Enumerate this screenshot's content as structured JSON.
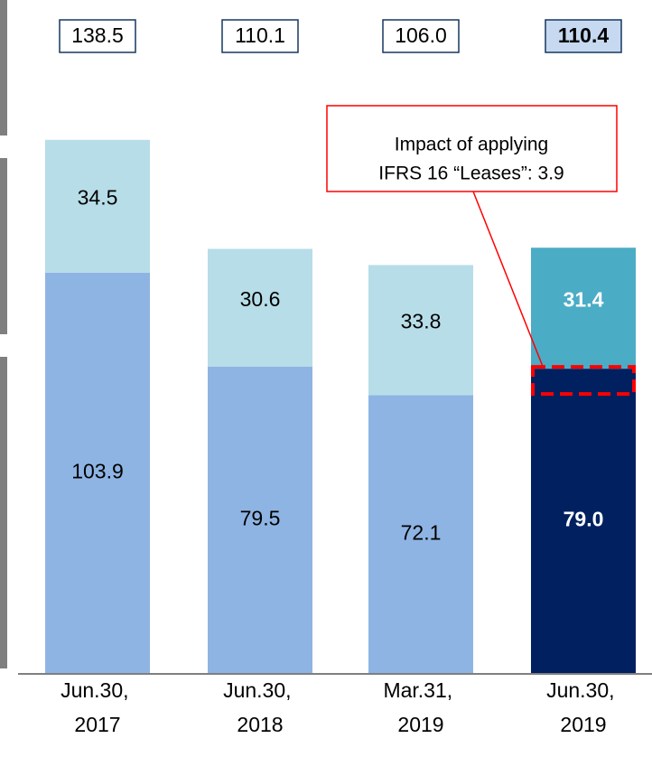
{
  "chart_data": {
    "type": "stacked_bar",
    "categories": [
      "Jun.30, 2017",
      "Jun.30, 2018",
      "Mar.31, 2019",
      "Jun.30, 2019"
    ],
    "series": [
      {
        "values": [
          103.9,
          79.5,
          72.1,
          79.0
        ],
        "value_labels": [
          "103.9",
          "79.5",
          "72.1",
          "79.0"
        ],
        "colors": [
          "#8eb4e3",
          "#8eb4e3",
          "#8eb4e3",
          "#002060"
        ]
      },
      {
        "values": [
          34.5,
          30.6,
          33.8,
          31.4
        ],
        "value_labels": [
          "34.5",
          "30.6",
          "33.8",
          "31.4"
        ],
        "colors": [
          "#b7dde8",
          "#b7dde8",
          "#b7dde8",
          "#4bacc6"
        ]
      }
    ],
    "totals": [
      138.5,
      110.1,
      106.0,
      110.4
    ],
    "total_labels": [
      "138.5",
      "110.1",
      "106.0",
      "110.4"
    ],
    "highlight_index": 3,
    "ylim": [
      0,
      140
    ],
    "annotation": {
      "lines": [
        "Impact of applying",
        "IFRS 16 “Leases”: 3.9"
      ]
    }
  }
}
